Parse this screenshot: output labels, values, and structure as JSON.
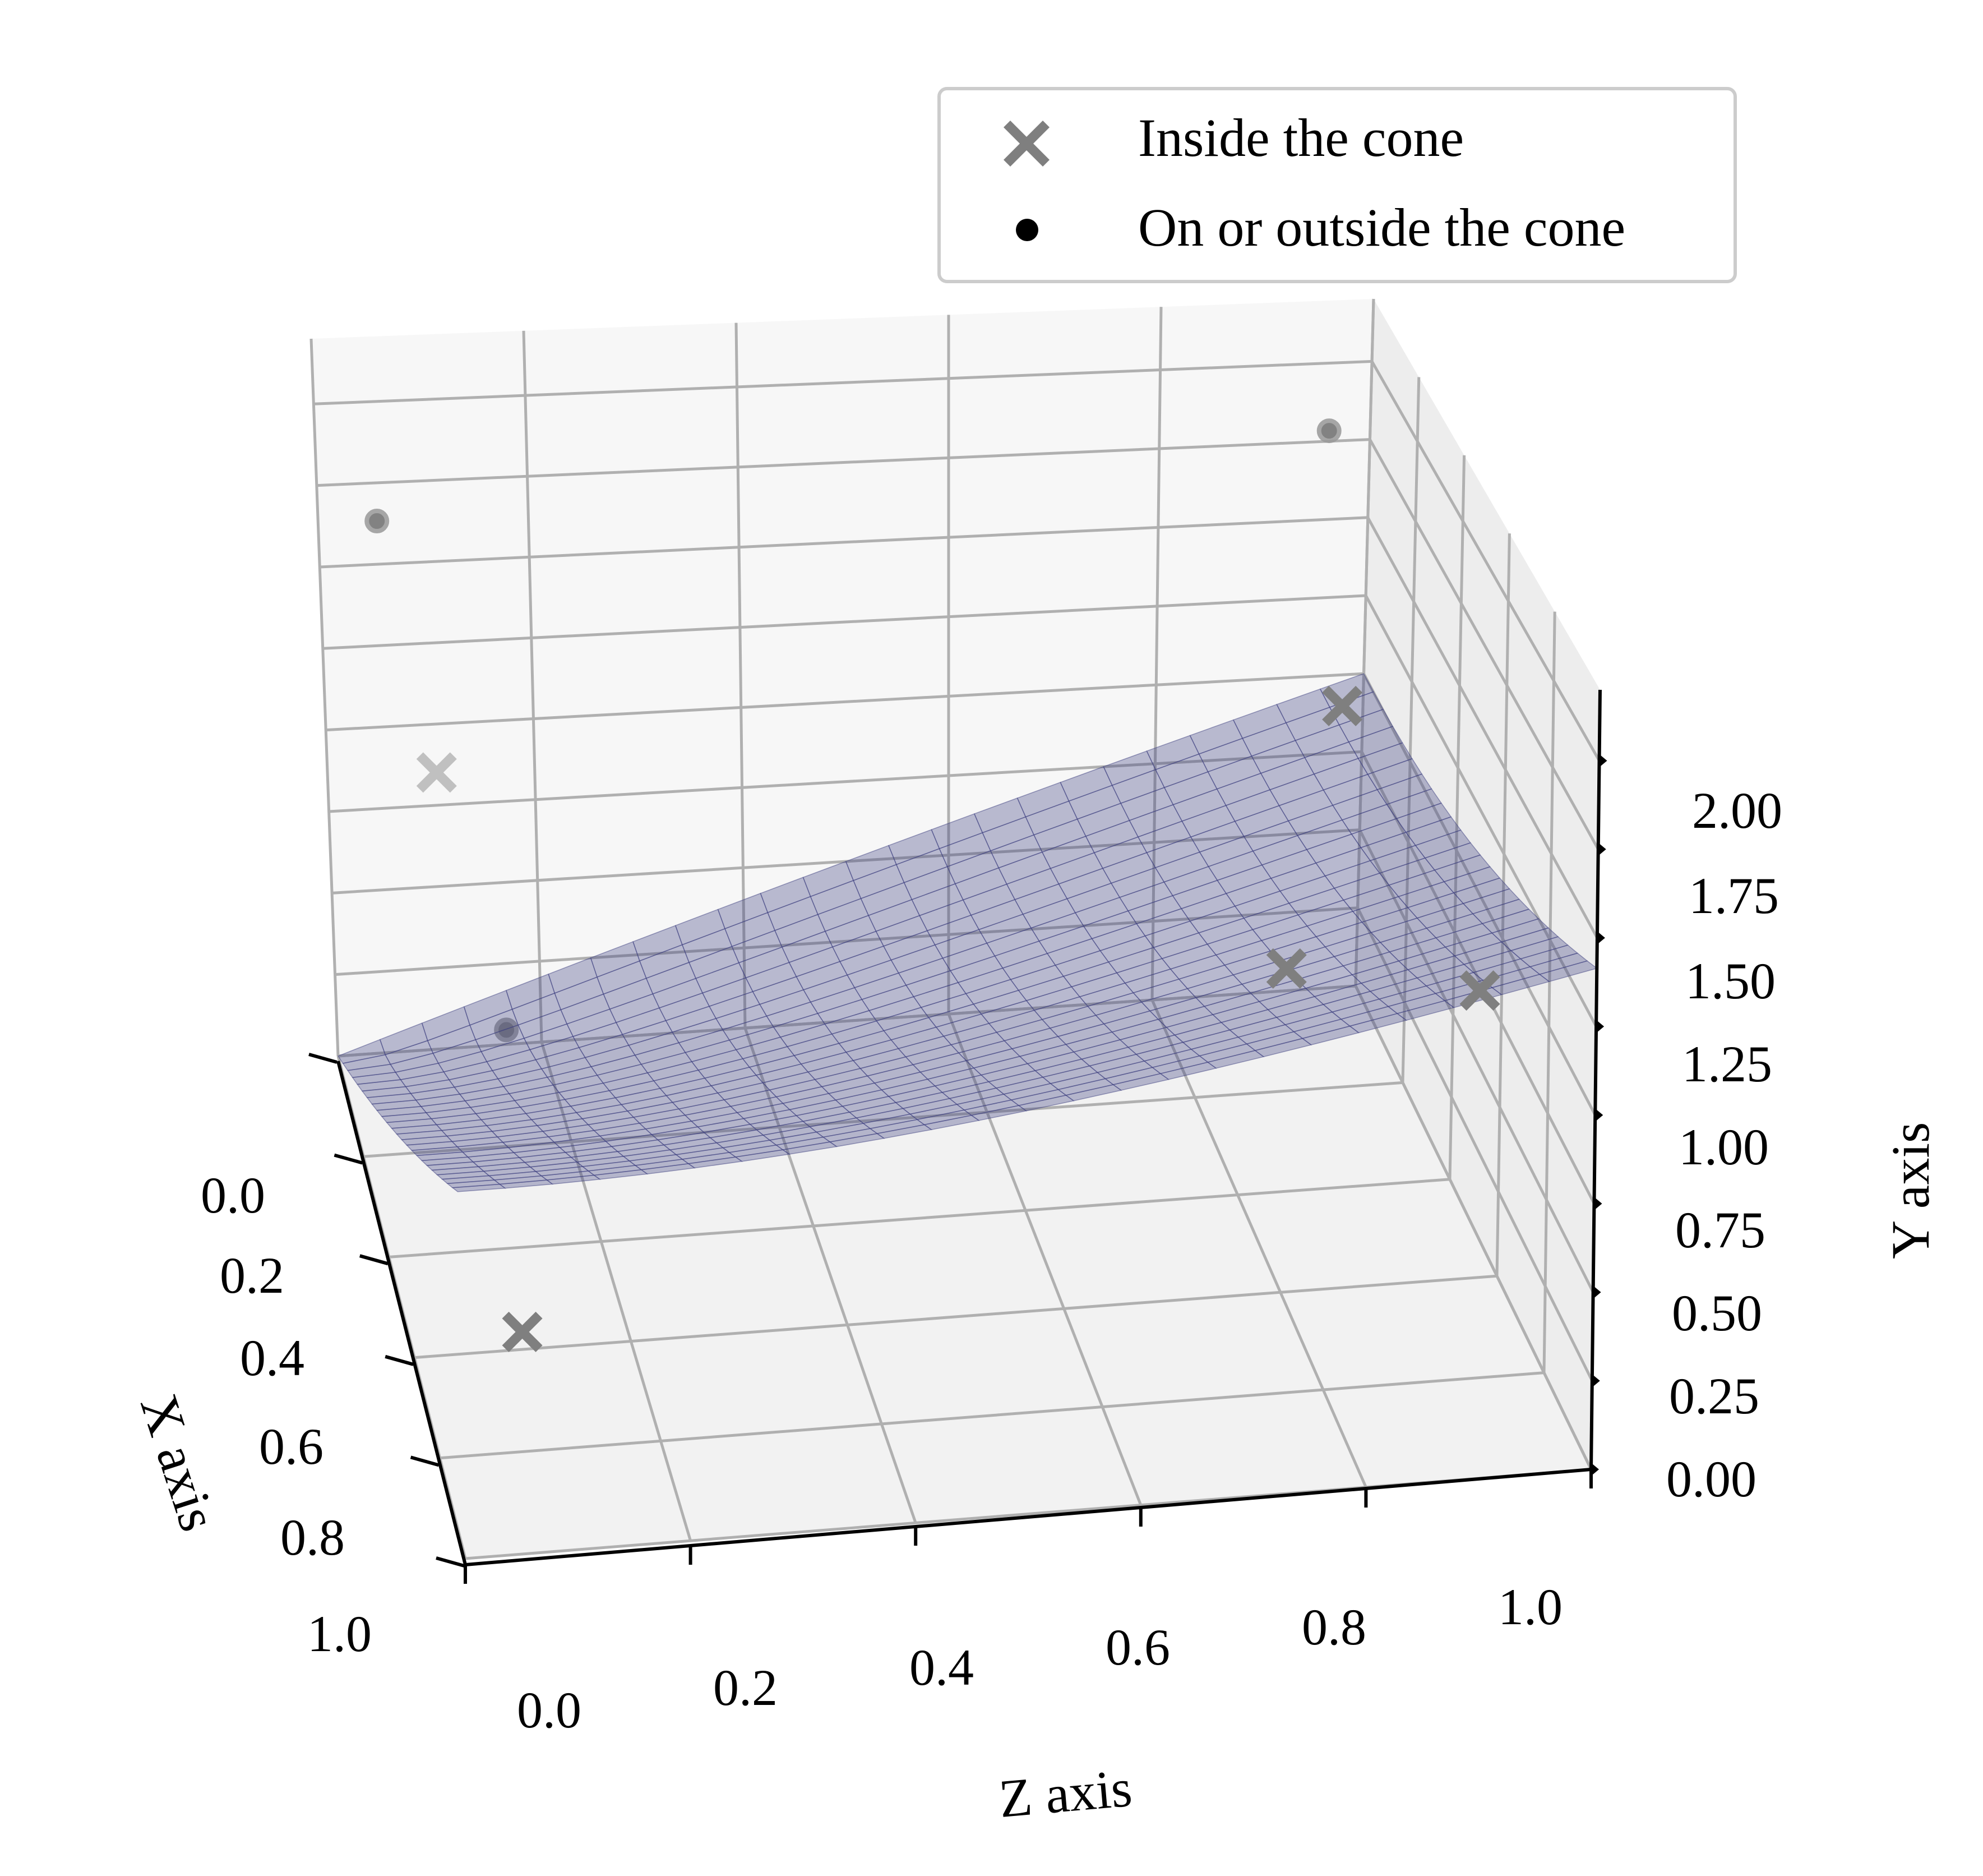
{
  "chart_data": {
    "type": "scatter",
    "projection": "3d",
    "title": "",
    "xlabel": "X axis",
    "ylabel": "Y axis",
    "zlabel": "Z axis",
    "xlim": [
      0,
      1
    ],
    "ylim": [
      0,
      2.2
    ],
    "zlim": [
      0,
      1
    ],
    "x_ticks": [
      "0.0",
      "0.2",
      "0.4",
      "0.6",
      "0.8",
      "1.0"
    ],
    "y_ticks": [
      "0.00",
      "0.25",
      "0.50",
      "0.75",
      "1.00",
      "1.25",
      "1.50",
      "1.75",
      "2.00"
    ],
    "z_ticks": [
      "0.0",
      "0.2",
      "0.4",
      "0.6",
      "0.8",
      "1.0"
    ],
    "grid": true,
    "legend": {
      "placement": "top-right",
      "entries": [
        {
          "label": "Inside the cone",
          "marker": "x",
          "color": "#7f7f7f"
        },
        {
          "label": "On or outside the cone",
          "marker": "o",
          "color": "#000000"
        }
      ]
    },
    "surface": {
      "name": "cone",
      "equation": "y = sqrt(x^2 + z^2)",
      "color": "#3d4080",
      "alpha": 0.45
    },
    "series": [
      {
        "name": "Inside the cone",
        "marker": "x",
        "color": "#7f7f7f",
        "points": [
          {
            "x": 0.55,
            "y": 1.6,
            "z": 0.04
          },
          {
            "x": 0.05,
            "y": 0.15,
            "z": 0.92
          },
          {
            "x": 0.0,
            "y": 0.9,
            "z": 0.98
          },
          {
            "x": 0.6,
            "y": 0.85,
            "z": 0.98
          },
          {
            "x": 0.6,
            "y": 0.05,
            "z": 0.1
          }
        ]
      },
      {
        "name": "On or outside the cone",
        "marker": "o",
        "color": "#000000",
        "points": [
          {
            "x": 0.05,
            "y": 1.7,
            "z": 0.05
          },
          {
            "x": 0.05,
            "y": 1.85,
            "z": 0.95
          },
          {
            "x": 0.7,
            "y": 1.05,
            "z": 0.08
          }
        ]
      }
    ]
  }
}
